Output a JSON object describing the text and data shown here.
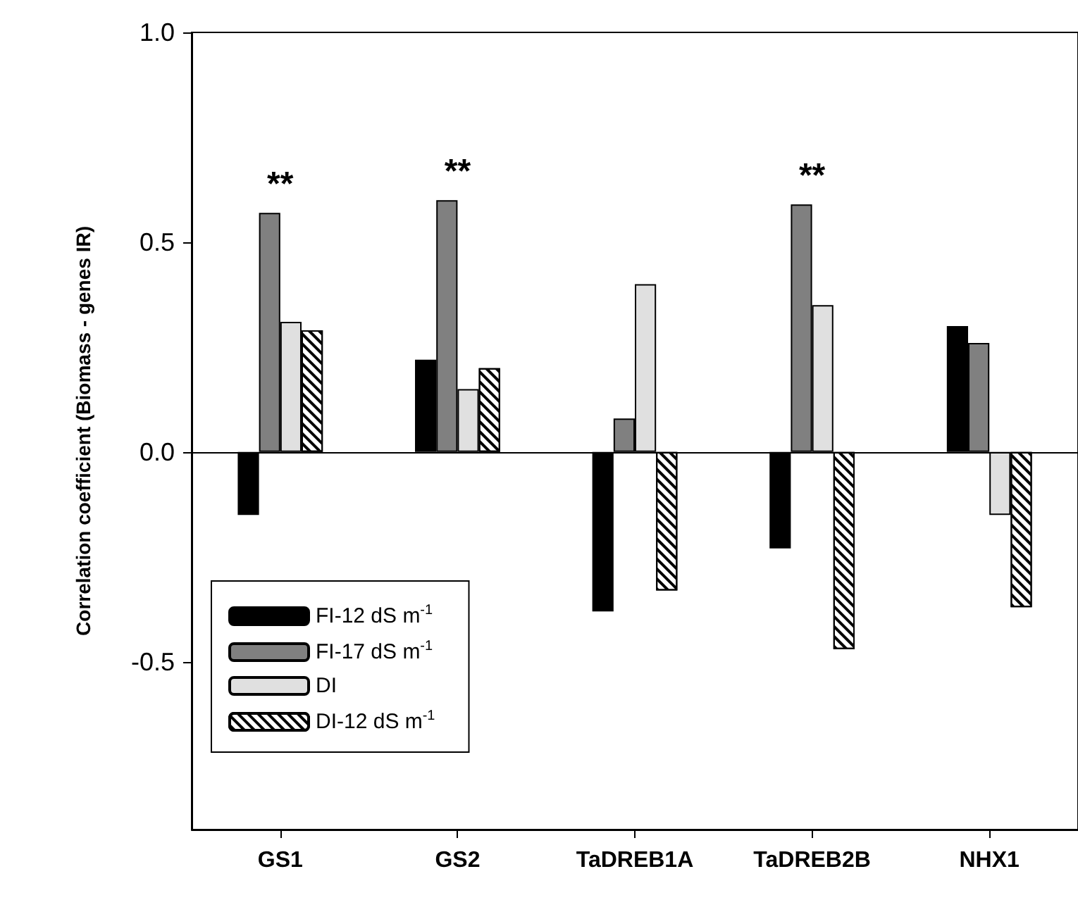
{
  "chart_data": {
    "type": "bar",
    "ylabel": "Correlation coefficient (Biomass - genes IR)",
    "categories": [
      "GS1",
      "GS2",
      "TaDREB1A",
      "TaDREB2B",
      "NHX1"
    ],
    "series": [
      {
        "name": "FI-12 dS m$^{-1}$",
        "color": "#000000",
        "values": [
          -0.15,
          0.22,
          -0.38,
          -0.23,
          0.3
        ]
      },
      {
        "name": "FI-17 dS m$^{-1}$",
        "color": "#808080",
        "values": [
          0.57,
          0.6,
          0.08,
          0.59,
          0.26
        ]
      },
      {
        "name": "DI",
        "color": "#e0e0e0",
        "values": [
          0.31,
          0.15,
          0.4,
          0.35,
          -0.15
        ]
      },
      {
        "name": "DI-12 dS m$^{-1}$",
        "color": "#ffffff",
        "values": [
          0.29,
          0.2,
          -0.33,
          -0.47,
          -0.37
        ]
      }
    ],
    "ylim": [
      -0.9,
      1.0
    ],
    "yticks": [
      {
        "value": -0.5,
        "label": "-0.5"
      },
      {
        "value": 0,
        "label": "0.0"
      },
      {
        "value": 0.5,
        "label": "0.5"
      },
      {
        "value": 1,
        "label": "1.0"
      }
    ],
    "ref_lines": [
      {
        "axis": "y",
        "value": 0,
        "color": "#000000"
      }
    ],
    "annotations": [
      {
        "text": "**",
        "x": "GS1",
        "y": 0.57
      },
      {
        "text": "**",
        "x": "GS2",
        "y": 0.6
      },
      {
        "text": "**",
        "x": "TaDREB2B",
        "y": 0.59
      }
    ],
    "grid": false,
    "legend": "bottom left"
  }
}
